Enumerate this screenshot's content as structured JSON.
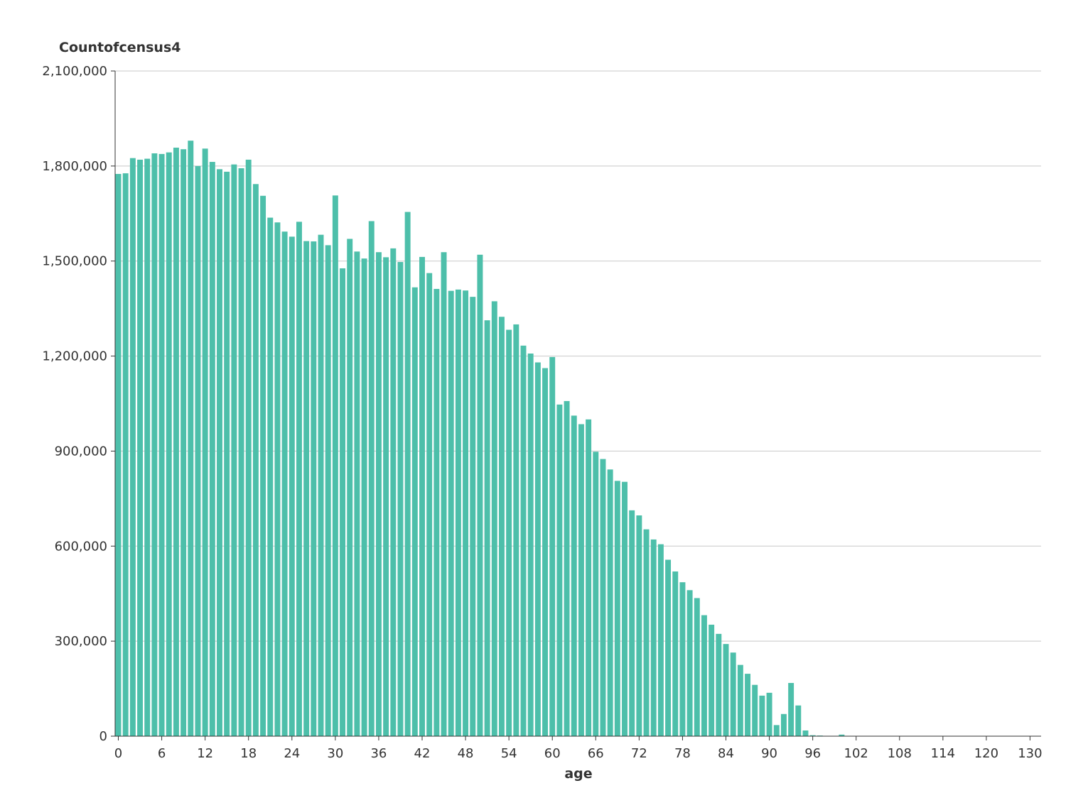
{
  "chart_data": {
    "type": "bar",
    "title": "",
    "ylabel": "Countofcensus4",
    "xlabel": "age",
    "ylim": [
      0,
      2100000
    ],
    "xlim": [
      0,
      130
    ],
    "yticks": [
      "0",
      "300,000",
      "600,000",
      "900,000",
      "1,200,000",
      "1,500,000",
      "1,800,000",
      "2,100,000"
    ],
    "ytick_values": [
      0,
      300000,
      600000,
      900000,
      1200000,
      1500000,
      1800000,
      2100000
    ],
    "xticks": [
      "0",
      "6",
      "12",
      "18",
      "24",
      "30",
      "36",
      "42",
      "48",
      "54",
      "60",
      "66",
      "72",
      "78",
      "84",
      "90",
      "96",
      "102",
      "108",
      "114",
      "120",
      "130"
    ],
    "xtick_values": [
      0,
      6,
      12,
      18,
      24,
      30,
      36,
      42,
      48,
      54,
      60,
      66,
      72,
      78,
      84,
      90,
      96,
      102,
      108,
      114,
      120,
      130
    ],
    "grid": true,
    "bar_color": "#4dbfaa",
    "series": [
      {
        "x": [
          0,
          1,
          2,
          3,
          4,
          5,
          6,
          7,
          8,
          9,
          10,
          11,
          12,
          13,
          14,
          15,
          16,
          17,
          18,
          19,
          20,
          21,
          22,
          23,
          24,
          25,
          26,
          27,
          28,
          29,
          30,
          31,
          32,
          33,
          34,
          35,
          36,
          37,
          38,
          39,
          40,
          41,
          42,
          43,
          44,
          45,
          46,
          47,
          48,
          49,
          50,
          51,
          52,
          53,
          54,
          55,
          56,
          57,
          58,
          59,
          60,
          61,
          62,
          63,
          64,
          65,
          66,
          67,
          68,
          69,
          70,
          71,
          72,
          73,
          74,
          75,
          76,
          77,
          78,
          79,
          80,
          81,
          82,
          83,
          84,
          85,
          86,
          87,
          88,
          89,
          90,
          91,
          92,
          93,
          94,
          95,
          96,
          97,
          98,
          99,
          100,
          101,
          102
        ],
        "values": [
          1775000,
          1777000,
          1825000,
          1820000,
          1823000,
          1840000,
          1838000,
          1843000,
          1858000,
          1853000,
          1880000,
          1800000,
          1855000,
          1813000,
          1790000,
          1782000,
          1805000,
          1793000,
          1820000,
          1743000,
          1706000,
          1637000,
          1622000,
          1593000,
          1577000,
          1624000,
          1563000,
          1562000,
          1583000,
          1550000,
          1707000,
          1477000,
          1570000,
          1530000,
          1508000,
          1626000,
          1528000,
          1512000,
          1540000,
          1497000,
          1655000,
          1417000,
          1513000,
          1462000,
          1412000,
          1528000,
          1406000,
          1410000,
          1407000,
          1387000,
          1520000,
          1313000,
          1373000,
          1324000,
          1283000,
          1300000,
          1233000,
          1208000,
          1180000,
          1162000,
          1197000,
          1047000,
          1058000,
          1012000,
          985000,
          1000000,
          898000,
          875000,
          842000,
          806000,
          803000,
          713000,
          697000,
          653000,
          621000,
          606000,
          557000,
          520000,
          486000,
          461000,
          436000,
          382000,
          352000,
          323000,
          291000,
          264000,
          225000,
          197000,
          162000,
          128000,
          137000,
          35000,
          70000,
          168000,
          97000,
          18000,
          3000,
          2000,
          1000,
          1000,
          5000,
          1000,
          1000
        ]
      }
    ]
  }
}
